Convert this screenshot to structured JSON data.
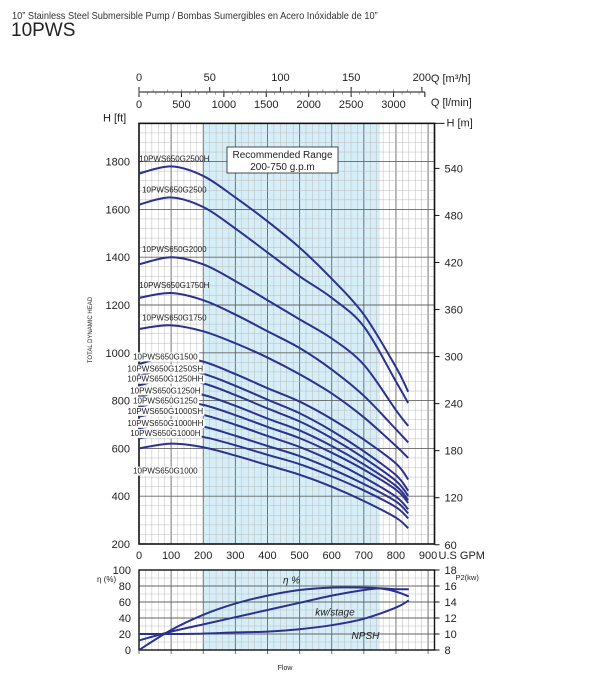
{
  "header": {
    "subtitle": "10” Stainless Steel Submersible Pump / Bombas Sumergibles en Acero Inóxidable de 10”",
    "title": "10PWS"
  },
  "colors": {
    "curve": "#2b3190",
    "recommended_fill": "#d5eef8",
    "grid": "#9a9a9a"
  },
  "chart_data": [
    {
      "type": "line",
      "xlabel": "U.S GPM",
      "ylabel": "H [ft]",
      "ylabel_right": "H [m]",
      "ylabel_side": "TOTAL DYNAMIC HEAD",
      "xlim": [
        0,
        920
      ],
      "ylim": [
        200,
        1960
      ],
      "x_ticks": [
        0,
        100,
        200,
        300,
        400,
        500,
        600,
        700,
        800,
        900
      ],
      "y_ticks": [
        200,
        400,
        600,
        800,
        1000,
        1200,
        1400,
        1600,
        1800
      ],
      "y_right_ticks": [
        60,
        120,
        180,
        240,
        300,
        360,
        420,
        480,
        540
      ],
      "top_axes": [
        {
          "label": "Q [m³/h]",
          "ticks": [
            0,
            50,
            100,
            150,
            200
          ],
          "gpm_per_unit": 4.403
        },
        {
          "label": "Q [l/min]",
          "ticks": [
            0,
            500,
            1000,
            1500,
            2000,
            2500,
            3000
          ],
          "gpm_per_unit": 0.26417
        }
      ],
      "grid": true,
      "recommended_range": {
        "from": 200,
        "to": 750,
        "label_line1": "Recommended Range",
        "label_line2": "200-750 g.p.m"
      },
      "x": [
        0,
        100,
        200,
        300,
        400,
        500,
        600,
        700,
        800,
        838
      ],
      "series": [
        {
          "name": "10PWS650G2500H",
          "values": [
            1750,
            1780,
            1740,
            1650,
            1550,
            1440,
            1310,
            1160,
            940,
            837
          ]
        },
        {
          "name": "10PWS650G2500",
          "values": [
            1620,
            1650,
            1610,
            1520,
            1420,
            1320,
            1230,
            1110,
            880,
            790
          ]
        },
        {
          "name": "10PWS650G2000",
          "values": [
            1370,
            1400,
            1370,
            1300,
            1220,
            1140,
            1060,
            950,
            760,
            694
          ]
        },
        {
          "name": "10PWS650G1750H",
          "values": [
            1230,
            1250,
            1220,
            1160,
            1090,
            1020,
            930,
            820,
            680,
            625
          ]
        },
        {
          "name": "10PWS650G1750",
          "values": [
            1100,
            1115,
            1090,
            1040,
            980,
            910,
            830,
            730,
            610,
            560
          ]
        },
        {
          "name": "10PWS650G1500",
          "values": [
            953,
            985,
            963,
            911,
            852,
            796,
            723,
            637,
            537,
            470
          ]
        },
        {
          "name": "10PWS650G1250SH",
          "values": [
            904,
            934,
            912,
            862,
            804,
            747,
            674,
            588,
            488,
            423
          ]
        },
        {
          "name": "10PWS650G1250HH",
          "values": [
            864,
            892,
            872,
            823,
            767,
            713,
            643,
            560,
            464,
            402
          ]
        },
        {
          "name": "10PWS650G1250H",
          "values": [
            816,
            843,
            824,
            778,
            725,
            675,
            610,
            533,
            443,
            384
          ]
        },
        {
          "name": "10PWS650G1250",
          "values": [
            774,
            800,
            782,
            739,
            690,
            643,
            582,
            511,
            427,
            372
          ]
        },
        {
          "name": "10PWS650G1000SH",
          "values": [
            733,
            757,
            740,
            699,
            652,
            606,
            548,
            479,
            398,
            345
          ]
        },
        {
          "name": "10PWS650G1000HH",
          "values": [
            684,
            707,
            691,
            653,
            610,
            568,
            514,
            451,
            378,
            328
          ]
        },
        {
          "name": "10PWS650G1000H",
          "values": [
            642,
            664,
            648,
            613,
            573,
            534,
            483,
            424,
            354,
            307
          ]
        },
        {
          "name": "10PWS650G1000",
          "values": [
            600,
            620,
            605,
            570,
            530,
            490,
            440,
            380,
            310,
            266
          ]
        }
      ]
    },
    {
      "type": "line",
      "xlabel": "Flow",
      "ylabel": "η (%)",
      "ylabel_right": "P2(kw)",
      "xlim": [
        0,
        920
      ],
      "ylim": [
        0,
        100
      ],
      "y_right_lim": [
        8,
        18
      ],
      "y_ticks": [
        0,
        20,
        40,
        60,
        80,
        100
      ],
      "y_right_ticks": [
        8,
        10,
        12,
        14,
        16,
        18
      ],
      "grid": true,
      "recommended_range": {
        "from": 200,
        "to": 750
      },
      "series": [
        {
          "name": "η %",
          "axis": "left",
          "x": [
            0,
            100,
            200,
            300,
            400,
            500,
            600,
            700,
            750,
            800,
            840
          ],
          "values": [
            0,
            25,
            44,
            58,
            68,
            75,
            78,
            78,
            77,
            73,
            67
          ],
          "label_x": 475,
          "label_y": 88
        },
        {
          "name": "kw/stage",
          "axis": "right",
          "x": [
            0,
            100,
            200,
            300,
            400,
            500,
            600,
            700,
            750,
            800,
            840
          ],
          "values": [
            9.2,
            10.3,
            11.2,
            12.1,
            13.0,
            13.9,
            14.8,
            15.5,
            15.7,
            15.6,
            15.6
          ],
          "label_x": 610,
          "label_y": 48
        },
        {
          "name": "NPSH",
          "axis": "left",
          "x": [
            0,
            100,
            200,
            300,
            400,
            500,
            600,
            700,
            800,
            840
          ],
          "values": [
            20,
            20,
            20.5,
            22,
            23,
            26,
            31,
            39,
            53,
            62
          ],
          "label_x": 705,
          "label_y": 19
        }
      ]
    }
  ]
}
